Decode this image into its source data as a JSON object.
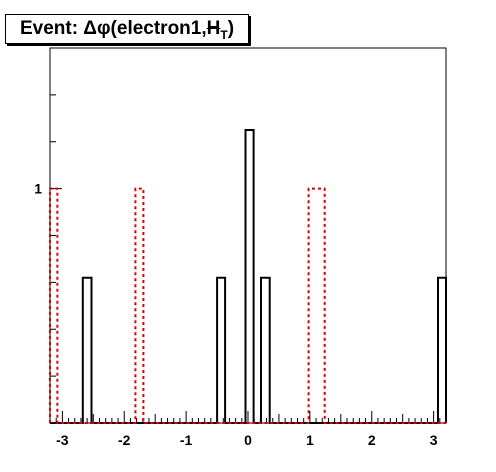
{
  "chart_data": {
    "type": "bar",
    "title_text": "Event: Δφ(electron1,",
    "title_symbol": "H",
    "title_sub": "T",
    "title_close": ")",
    "xlabel": "",
    "ylabel": "",
    "xlim": [
      -3.2,
      3.2
    ],
    "ylim": [
      0,
      1.6
    ],
    "x_ticks": [
      "-3",
      "-2",
      "-1",
      "0",
      "1",
      "2",
      "3"
    ],
    "y_ticks": [
      "1"
    ],
    "grid": false,
    "series": [
      {
        "color": "#000000",
        "style": "solid",
        "bins": [
          {
            "x0": -2.67,
            "x1": -2.53,
            "value": 0.62
          },
          {
            "x0": -0.5,
            "x1": -0.37,
            "value": 0.62
          },
          {
            "x0": -0.04,
            "x1": 0.09,
            "value": 1.25
          },
          {
            "x0": 0.21,
            "x1": 0.35,
            "value": 0.62
          },
          {
            "x0": 3.07,
            "x1": 3.2,
            "value": 0.62
          }
        ]
      },
      {
        "color": "#dd0000",
        "style": "dashed",
        "bins": [
          {
            "x0": -3.2,
            "x1": -3.08,
            "value": 1.0
          },
          {
            "x0": -1.82,
            "x1": -1.69,
            "value": 1.0
          },
          {
            "x0": 0.98,
            "x1": 1.24,
            "value": 1.0
          }
        ]
      }
    ]
  }
}
